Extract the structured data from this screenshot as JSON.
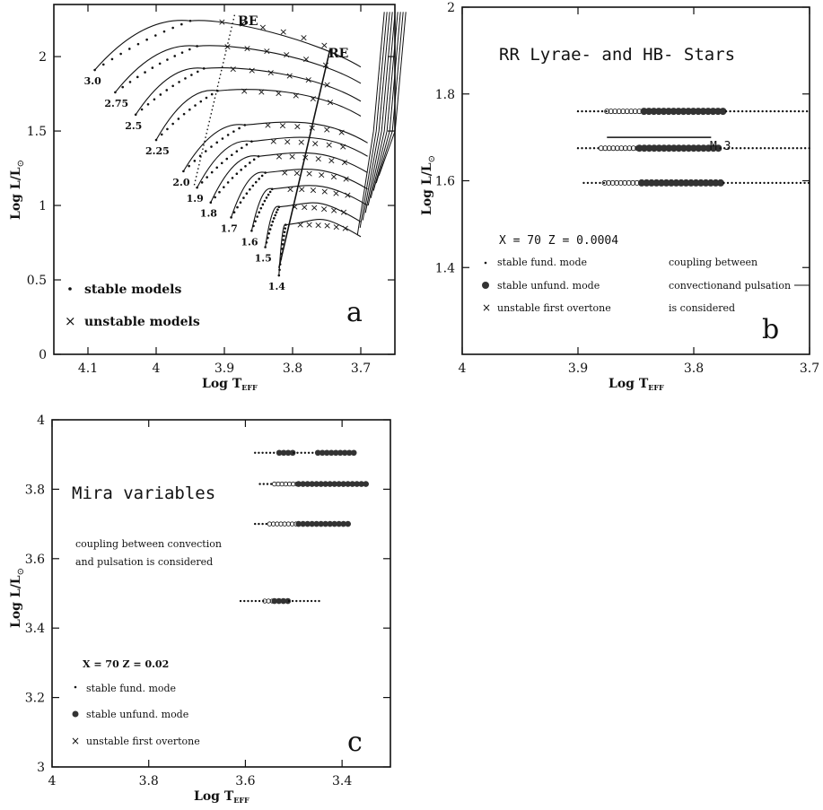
{
  "chart_data": [
    {
      "panel": "a",
      "type": "line",
      "ylabel": "Log L/L⊙",
      "xlabel": "Log Tₑₒₒ",
      "xlabel_main": "Log T",
      "xlabel_sub": "EFF",
      "ylabel_main": "Log L/L",
      "ylabel_sub": "⊙",
      "xlim": [
        4.15,
        3.65
      ],
      "ylim": [
        0,
        2.35
      ],
      "xticks": [
        4.1,
        4,
        3.9,
        3.8,
        3.7
      ],
      "xtick_labels": [
        "4.1",
        "4",
        "3.9",
        "3.8",
        "3.7"
      ],
      "yticks": [
        0,
        0.5,
        1,
        1.5,
        2
      ],
      "ytick_labels": [
        "0",
        "0.5",
        "1",
        "1.5",
        "2"
      ],
      "line_labels": {
        "BE": "BE",
        "RE": "RE"
      },
      "legend": {
        "stable": "stable models",
        "unstable": "unstable models"
      },
      "series": [
        {
          "mass": "3.0",
          "start": [
            4.09,
            1.91
          ],
          "mid": [
            3.95,
            2.24
          ],
          "end": [
            3.7,
            1.93
          ]
        },
        {
          "mass": "2.75",
          "start": [
            4.06,
            1.76
          ],
          "mid": [
            3.94,
            2.07
          ],
          "end": [
            3.7,
            1.82
          ]
        },
        {
          "mass": "2.5",
          "start": [
            4.03,
            1.61
          ],
          "mid": [
            3.93,
            1.92
          ],
          "end": [
            3.7,
            1.7
          ]
        },
        {
          "mass": "2.25",
          "start": [
            4.0,
            1.44
          ],
          "mid": [
            3.91,
            1.77
          ],
          "end": [
            3.7,
            1.6
          ]
        },
        {
          "mass": "2.0",
          "start": [
            3.96,
            1.23
          ],
          "mid": [
            3.87,
            1.54
          ],
          "end": [
            3.69,
            1.42
          ]
        },
        {
          "mass": "1.9",
          "start": [
            3.94,
            1.12
          ],
          "mid": [
            3.86,
            1.43
          ],
          "end": [
            3.69,
            1.33
          ]
        },
        {
          "mass": "1.8",
          "start": [
            3.92,
            1.02
          ],
          "mid": [
            3.85,
            1.33
          ],
          "end": [
            3.69,
            1.22
          ]
        },
        {
          "mass": "1.7",
          "start": [
            3.89,
            0.92
          ],
          "mid": [
            3.84,
            1.22
          ],
          "end": [
            3.69,
            1.11
          ]
        },
        {
          "mass": "1.6",
          "start": [
            3.86,
            0.83
          ],
          "mid": [
            3.83,
            1.11
          ],
          "end": [
            3.69,
            1.0
          ]
        },
        {
          "mass": "1.5",
          "start": [
            3.84,
            0.72
          ],
          "mid": [
            3.82,
            0.99
          ],
          "end": [
            3.7,
            0.89
          ]
        },
        {
          "mass": "1.4",
          "start": [
            3.82,
            0.53
          ],
          "mid": [
            3.81,
            0.87
          ],
          "end": [
            3.7,
            0.79
          ]
        }
      ],
      "panel_letter": "a"
    },
    {
      "panel": "b",
      "type": "scatter",
      "title": "RR Lyrae- and HB- Stars",
      "xlabel_main": "Log T",
      "xlabel_sub": "EFF",
      "ylabel_main": "Log L/L",
      "ylabel_sub": "⊙",
      "xlim": [
        4.0,
        3.7
      ],
      "ylim": [
        1.2,
        2.0
      ],
      "xticks": [
        4,
        3.9,
        3.8,
        3.7
      ],
      "xtick_labels": [
        "4",
        "3.9",
        "3.8",
        "3.7"
      ],
      "yticks": [
        1.4,
        1.6,
        1.8,
        2
      ],
      "ytick_labels": [
        "1.4",
        "1.6",
        "1.8",
        "2"
      ],
      "rows": [
        {
          "logL": 1.76,
          "stable_fund": [
            3.9,
            3.875
          ],
          "unstable": [
            3.875,
            3.843
          ],
          "stable_unfund": [
            3.843,
            3.772
          ],
          "stable_fund_2": [
            3.772,
            3.7
          ]
        },
        {
          "logL": 1.675,
          "stable_fund": [
            3.9,
            3.88
          ],
          "unstable": [
            3.88,
            3.847
          ],
          "stable_unfund": [
            3.847,
            3.777
          ],
          "stable_fund_2": [
            3.777,
            3.7
          ]
        },
        {
          "logL": 1.595,
          "stable_fund": [
            3.895,
            3.877
          ],
          "unstable": [
            3.877,
            3.845
          ],
          "stable_unfund": [
            3.845,
            3.774
          ],
          "stable_fund_2": [
            3.774,
            3.7
          ]
        }
      ],
      "m3_line": {
        "x": [
          3.875,
          3.785
        ],
        "y": 1.7,
        "label": "M 3"
      },
      "composition": "X = 70 Z = 0.0004",
      "legend": {
        "fund": "stable fund. mode",
        "unfund": "stable unfund. mode",
        "overtone": "unstable first overtone"
      },
      "note": [
        "coupling between",
        "convectionand pulsation",
        "is considered"
      ],
      "panel_letter": "b"
    },
    {
      "panel": "c",
      "type": "scatter",
      "title": "Mira variables",
      "xlabel_main": "Log T",
      "xlabel_sub": "EFF",
      "ylabel_main": "Log L/L",
      "ylabel_sub": "⊙",
      "xlim": [
        4.0,
        3.3
      ],
      "ylim": [
        3.0,
        4.0
      ],
      "xticks": [
        4,
        3.8,
        3.6,
        3.4
      ],
      "xtick_labels": [
        "4",
        "3.8",
        "3.6",
        "3.4"
      ],
      "yticks": [
        3,
        3.2,
        3.4,
        3.6,
        3.8,
        4
      ],
      "ytick_labels": [
        "3",
        "3.2",
        "3.4",
        "3.6",
        "3.8",
        "4"
      ],
      "rows": [
        {
          "logL": 3.905,
          "segments": [
            [
              "fund",
              3.58,
              3.53
            ],
            [
              "unfund",
              3.53,
              3.5
            ],
            [
              "fund",
              3.5,
              3.45
            ],
            [
              "unfund",
              3.45,
              3.37
            ]
          ]
        },
        {
          "logL": 3.815,
          "segments": [
            [
              "fund",
              3.57,
              3.54
            ],
            [
              "overtone",
              3.54,
              3.49
            ],
            [
              "unfund",
              3.49,
              3.35
            ]
          ]
        },
        {
          "logL": 3.7,
          "segments": [
            [
              "fund",
              3.58,
              3.55
            ],
            [
              "overtone",
              3.55,
              3.49
            ],
            [
              "unfund",
              3.49,
              3.38
            ]
          ]
        },
        {
          "logL": 3.478,
          "segments": [
            [
              "fund",
              3.61,
              3.56
            ],
            [
              "overtone",
              3.56,
              3.54
            ],
            [
              "unfund",
              3.54,
              3.51
            ],
            [
              "fund",
              3.51,
              3.44
            ]
          ]
        }
      ],
      "note": [
        "coupling between convection",
        "and pulsation is considered"
      ],
      "composition": "X = 70 Z = 0.02",
      "legend": {
        "fund": "stable fund. mode",
        "unfund": "stable unfund. mode",
        "overtone": "unstable first overtone"
      },
      "panel_letter": "c"
    }
  ]
}
